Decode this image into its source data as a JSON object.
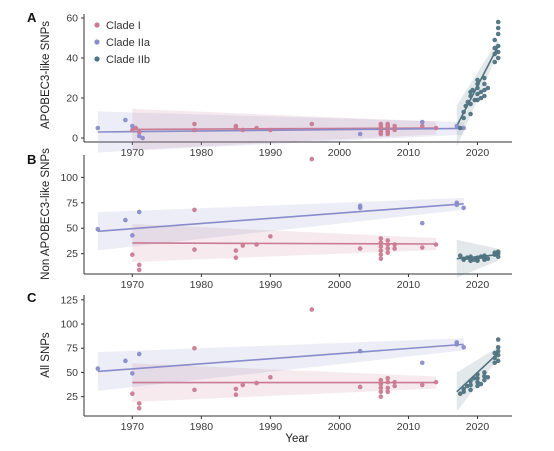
{
  "colors": {
    "clade_i": "#c97b93",
    "clade_iia": "#8a8cc9",
    "clade_iib": "#4f7381",
    "axis": "#333333"
  },
  "legend": [
    {
      "name": "Clade I",
      "color": "#c97b93"
    },
    {
      "name": "Clade IIa",
      "color": "#8a8cc9"
    },
    {
      "name": "Clade IIb",
      "color": "#4f7381"
    }
  ],
  "chart_data": [
    {
      "panel": "A",
      "type": "scatter",
      "xlabel": "",
      "ylabel": "APOBEC3-like SNPs",
      "xlim": [
        1963,
        2025
      ],
      "ylim": [
        -2,
        62
      ],
      "xticks": [
        1970,
        1980,
        1990,
        2000,
        2010,
        2020
      ],
      "yticks": [
        0,
        20,
        40,
        60
      ],
      "legend": "top-left",
      "series": [
        {
          "name": "Clade I",
          "color": "#c97b93",
          "points": [
            [
              1970,
              4
            ],
            [
              1970.5,
              5
            ],
            [
              1971,
              3
            ],
            [
              1979,
              7
            ],
            [
              1979,
              4
            ],
            [
              1985,
              5
            ],
            [
              1985,
              6
            ],
            [
              1986,
              4
            ],
            [
              1988,
              5
            ],
            [
              1990,
              4
            ],
            [
              1996,
              7
            ],
            [
              2006,
              2
            ],
            [
              2006,
              3
            ],
            [
              2006,
              4
            ],
            [
              2006,
              5
            ],
            [
              2006,
              6
            ],
            [
              2006,
              7
            ],
            [
              2007,
              2
            ],
            [
              2007,
              3
            ],
            [
              2007,
              4
            ],
            [
              2007,
              5
            ],
            [
              2007,
              6
            ],
            [
              2007,
              7
            ],
            [
              2008,
              4
            ],
            [
              2008,
              6
            ],
            [
              2012,
              6
            ],
            [
              2014,
              5
            ]
          ],
          "fit": [
            [
              1970,
              4.3
            ],
            [
              2014,
              5.0
            ]
          ]
        },
        {
          "name": "Clade IIa",
          "color": "#8a8cc9",
          "points": [
            [
              1965,
              5
            ],
            [
              1969,
              9
            ],
            [
              1970,
              6
            ],
            [
              1971,
              1
            ],
            [
              1971.5,
              0
            ],
            [
              2003,
              2
            ],
            [
              2012,
              8
            ],
            [
              2017,
              6
            ],
            [
              2018,
              5
            ]
          ],
          "fit": [
            [
              1965,
              3.0
            ],
            [
              2018,
              4.8
            ]
          ]
        },
        {
          "name": "Clade IIb",
          "color": "#4f7381",
          "points": [
            [
              2017.5,
              5
            ],
            [
              2018,
              10
            ],
            [
              2018,
              13
            ],
            [
              2018.3,
              16
            ],
            [
              2018.6,
              18
            ],
            [
              2019,
              12
            ],
            [
              2019,
              17
            ],
            [
              2019,
              21
            ],
            [
              2019,
              23
            ],
            [
              2019.3,
              24
            ],
            [
              2019.6,
              19
            ],
            [
              2020,
              19
            ],
            [
              2020,
              22
            ],
            [
              2020,
              25
            ],
            [
              2020,
              27
            ],
            [
              2020,
              29
            ],
            [
              2020.5,
              20
            ],
            [
              2020.5,
              23
            ],
            [
              2021,
              21
            ],
            [
              2021,
              24
            ],
            [
              2021,
              27
            ],
            [
              2021,
              30
            ],
            [
              2021.5,
              25
            ],
            [
              2022.5,
              38
            ],
            [
              2022.5,
              42
            ],
            [
              2022.5,
              45
            ],
            [
              2022.5,
              49
            ],
            [
              2023,
              40
            ],
            [
              2023,
              43
            ],
            [
              2023,
              46
            ],
            [
              2023,
              52
            ],
            [
              2023,
              55
            ],
            [
              2023,
              58
            ]
          ],
          "fit": [
            [
              2017,
              6
            ],
            [
              2023,
              46
            ]
          ]
        }
      ]
    },
    {
      "panel": "B",
      "type": "scatter",
      "xlabel": "",
      "ylabel": "Non APOBEC3-like SNPs",
      "xlim": [
        1963,
        2025
      ],
      "ylim": [
        5,
        122
      ],
      "xticks": [
        1970,
        1980,
        1990,
        2000,
        2010,
        2020
      ],
      "yticks": [
        25,
        50,
        75,
        100
      ],
      "series": [
        {
          "name": "Clade I",
          "color": "#c97b93",
          "points": [
            [
              1970,
              24
            ],
            [
              1971,
              14
            ],
            [
              1971,
              9
            ],
            [
              1979,
              68
            ],
            [
              1979,
              29
            ],
            [
              1985,
              28
            ],
            [
              1985,
              21
            ],
            [
              1986,
              33
            ],
            [
              1988,
              34
            ],
            [
              1990,
              42
            ],
            [
              1996,
              118
            ],
            [
              2003,
              30
            ],
            [
              2006,
              28
            ],
            [
              2006,
              32
            ],
            [
              2006,
              36
            ],
            [
              2006,
              40
            ],
            [
              2006,
              24
            ],
            [
              2006,
              20
            ],
            [
              2007,
              26
            ],
            [
              2007,
              30
            ],
            [
              2007,
              34
            ],
            [
              2007,
              38
            ],
            [
              2008,
              30
            ],
            [
              2008,
              34
            ],
            [
              2012,
              31
            ],
            [
              2014,
              34
            ]
          ],
          "fit": [
            [
              1970,
              35.5
            ],
            [
              2014,
              34.5
            ]
          ]
        },
        {
          "name": "Clade IIa",
          "color": "#8a8cc9",
          "points": [
            [
              1965,
              49
            ],
            [
              1969,
              58
            ],
            [
              1970,
              43
            ],
            [
              1971,
              66
            ],
            [
              2003,
              72
            ],
            [
              2003,
              70
            ],
            [
              2012,
              55
            ],
            [
              2017,
              73
            ],
            [
              2017,
              75
            ],
            [
              2018,
              70
            ]
          ],
          "fit": [
            [
              1965,
              47
            ],
            [
              2018,
              74
            ]
          ]
        },
        {
          "name": "Clade IIb",
          "color": "#4f7381",
          "points": [
            [
              2017.5,
              23
            ],
            [
              2018,
              20
            ],
            [
              2018,
              19
            ],
            [
              2018.5,
              21
            ],
            [
              2019,
              18
            ],
            [
              2019,
              20
            ],
            [
              2019,
              22
            ],
            [
              2019.5,
              19
            ],
            [
              2020,
              18
            ],
            [
              2020,
              20
            ],
            [
              2020,
              21
            ],
            [
              2020.5,
              22
            ],
            [
              2021,
              19
            ],
            [
              2021,
              21
            ],
            [
              2021,
              23
            ],
            [
              2021.5,
              20
            ],
            [
              2022.5,
              24
            ],
            [
              2022.5,
              26
            ],
            [
              2023,
              22
            ],
            [
              2023,
              25
            ],
            [
              2023,
              27
            ]
          ],
          "fit": [
            [
              2017,
              20
            ],
            [
              2023,
              24
            ]
          ]
        }
      ]
    },
    {
      "panel": "C",
      "type": "scatter",
      "xlabel": "Year",
      "ylabel": "All SNPs",
      "xlim": [
        1963,
        2025
      ],
      "ylim": [
        5,
        130
      ],
      "xticks": [
        1970,
        1980,
        1990,
        2000,
        2010,
        2020
      ],
      "yticks": [
        25,
        50,
        75,
        100,
        125
      ],
      "series": [
        {
          "name": "Clade I",
          "color": "#c97b93",
          "points": [
            [
              1970,
              28
            ],
            [
              1971,
              18
            ],
            [
              1971,
              13
            ],
            [
              1979,
              75
            ],
            [
              1979,
              32
            ],
            [
              1985,
              33
            ],
            [
              1985,
              27
            ],
            [
              1986,
              37
            ],
            [
              1988,
              39
            ],
            [
              1990,
              45
            ],
            [
              1996,
              115
            ],
            [
              2003,
              35
            ],
            [
              2006,
              30
            ],
            [
              2006,
              34
            ],
            [
              2006,
              38
            ],
            [
              2006,
              42
            ],
            [
              2006,
              25
            ],
            [
              2007,
              30
            ],
            [
              2007,
              34
            ],
            [
              2007,
              40
            ],
            [
              2007,
              44
            ],
            [
              2008,
              36
            ],
            [
              2008,
              40
            ],
            [
              2012,
              37
            ],
            [
              2014,
              40
            ]
          ],
          "fit": [
            [
              1970,
              39.5
            ],
            [
              2014,
              39.5
            ]
          ]
        },
        {
          "name": "Clade IIa",
          "color": "#8a8cc9",
          "points": [
            [
              1965,
              54
            ],
            [
              1969,
              62
            ],
            [
              1970,
              49
            ],
            [
              1971,
              69
            ],
            [
              2003,
              72
            ],
            [
              2012,
              60
            ],
            [
              2017,
              79
            ],
            [
              2017,
              81
            ],
            [
              2018,
              76
            ]
          ],
          "fit": [
            [
              1965,
              51
            ],
            [
              2018,
              79
            ]
          ]
        },
        {
          "name": "Clade IIb",
          "color": "#4f7381",
          "points": [
            [
              2017.5,
              28
            ],
            [
              2018,
              30
            ],
            [
              2018,
              33
            ],
            [
              2018.5,
              36
            ],
            [
              2019,
              32
            ],
            [
              2019,
              37
            ],
            [
              2019,
              41
            ],
            [
              2019.5,
              44
            ],
            [
              2020,
              36
            ],
            [
              2020,
              40
            ],
            [
              2020,
              44
            ],
            [
              2020,
              48
            ],
            [
              2020.5,
              38
            ],
            [
              2021,
              42
            ],
            [
              2021,
              46
            ],
            [
              2021,
              50
            ],
            [
              2021.5,
              45
            ],
            [
              2022.5,
              60
            ],
            [
              2022.5,
              65
            ],
            [
              2022.5,
              70
            ],
            [
              2023,
              62
            ],
            [
              2023,
              68
            ],
            [
              2023,
              72
            ],
            [
              2023,
              76
            ],
            [
              2023,
              84
            ]
          ],
          "fit": [
            [
              2017,
              30
            ],
            [
              2023,
              70
            ]
          ]
        }
      ]
    }
  ]
}
